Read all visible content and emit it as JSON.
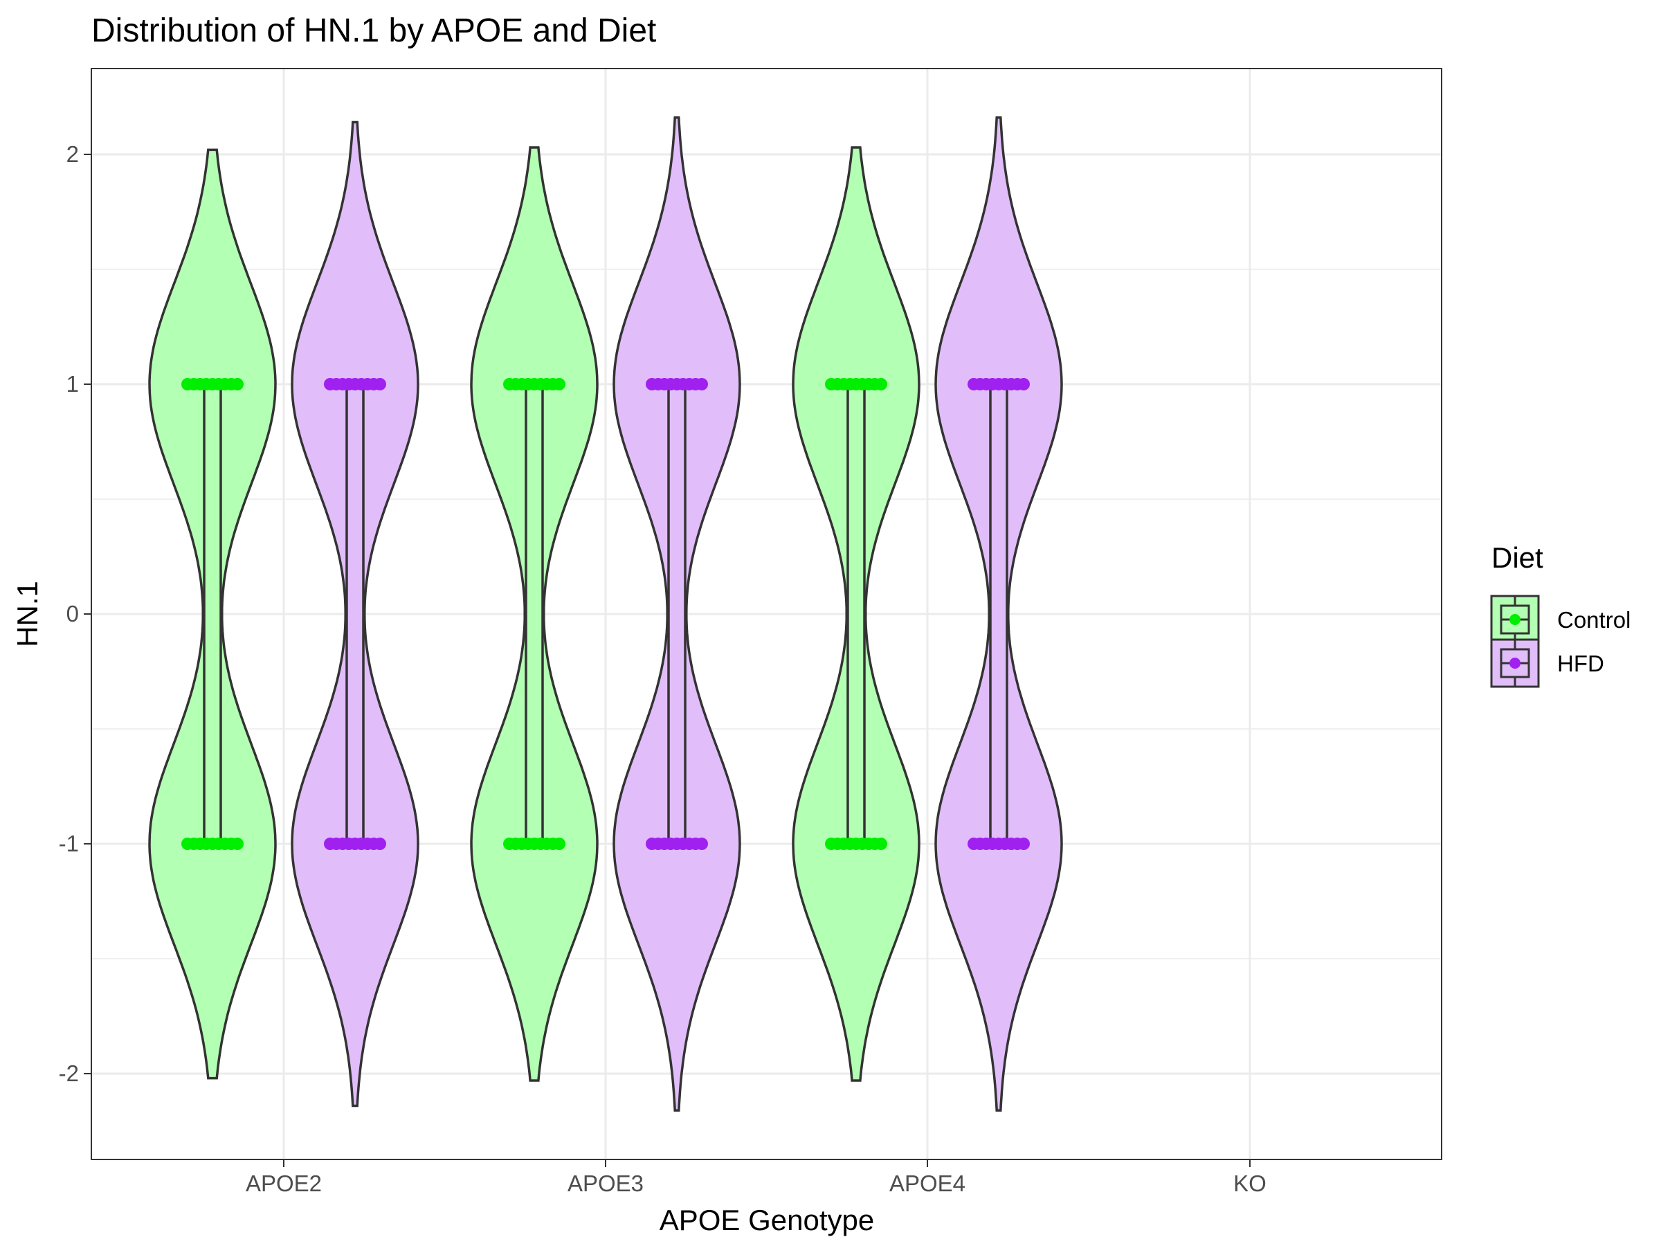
{
  "chart_data": {
    "type": "violin",
    "title": "Distribution of HN.1 by APOE and Diet",
    "xlabel": "APOE Genotype",
    "ylabel": "HN.1",
    "categories": [
      "APOE2",
      "APOE3",
      "APOE4",
      "KO"
    ],
    "ylim": [
      -2.37,
      2.37
    ],
    "yticks": [
      2,
      1,
      0,
      -1,
      -2
    ],
    "ytick_labels": [
      "2",
      "1",
      "0",
      "-1",
      "-2"
    ],
    "grid": true,
    "legend": {
      "title": "Diet",
      "placement": "right",
      "entries": [
        "Control",
        "HFD"
      ]
    },
    "series": [
      {
        "name": "Control",
        "color": "#00ee00",
        "fill": "#b3ffb3",
        "groups": [
          {
            "category": "APOE2",
            "observed_values": [
              -1,
              1
            ],
            "violin_range": [
              -2.02,
              2.02
            ],
            "box": {
              "q1": -1,
              "median": -1,
              "q3": 1
            }
          },
          {
            "category": "APOE3",
            "observed_values": [
              -1,
              1
            ],
            "violin_range": [
              -2.03,
              2.03
            ],
            "box": {
              "q1": -1,
              "median": 1,
              "q3": 1
            }
          },
          {
            "category": "APOE4",
            "observed_values": [
              -1,
              1
            ],
            "violin_range": [
              -2.03,
              2.03
            ],
            "box": {
              "q1": -1,
              "median": -1,
              "q3": 1
            }
          }
        ]
      },
      {
        "name": "HFD",
        "color": "#a020f0",
        "fill": "#e1bdfa",
        "groups": [
          {
            "category": "APOE2",
            "observed_values": [
              -1,
              1
            ],
            "violin_range": [
              -2.14,
              2.14
            ],
            "box": {
              "q1": -1,
              "median": 1,
              "q3": 1
            }
          },
          {
            "category": "APOE3",
            "observed_values": [
              -1,
              1
            ],
            "violin_range": [
              -2.16,
              2.16
            ],
            "box": {
              "q1": -1,
              "median": 1,
              "q3": 1
            }
          },
          {
            "category": "APOE4",
            "observed_values": [
              -1,
              1
            ],
            "violin_range": [
              -2.16,
              2.16
            ],
            "box": {
              "q1": -1,
              "median": 1,
              "q3": 1
            }
          }
        ]
      }
    ]
  }
}
